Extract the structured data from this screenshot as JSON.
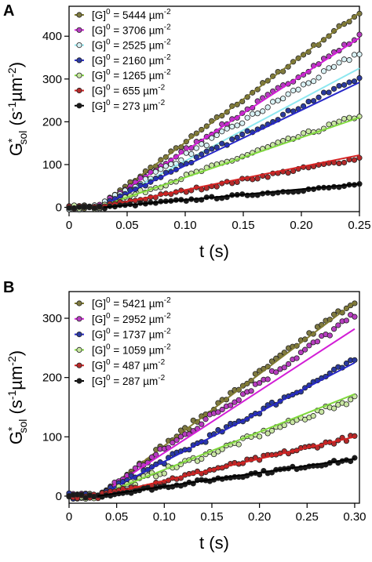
{
  "chart_data": [
    {
      "type": "scatter",
      "panel_label": "A",
      "title": "",
      "xlabel": "t (s)",
      "ylabel": "G*sol (s-1µm-2)",
      "ylabel_parts": {
        "main": "G",
        "sup": "*",
        "sub": "sol",
        "units": " (s",
        "u_sup1": "-1",
        "u_mid": "µm",
        "u_sup2": "-2",
        "u_end": ")"
      },
      "xlim": [
        0,
        0.25
      ],
      "ylim": [
        -10,
        470
      ],
      "x_ticks": [
        0,
        0.05,
        0.1,
        0.15,
        0.2,
        0.25
      ],
      "x_tick_labels": [
        "0",
        "0.05",
        "0.10",
        "0.15",
        "0.20",
        "0.25"
      ],
      "y_ticks": [
        0,
        100,
        200,
        300,
        400
      ],
      "y_tick_labels": [
        "0",
        "100",
        "200",
        "300",
        "400"
      ],
      "grid": false,
      "legend_position": "top-left",
      "series": [
        {
          "name": "[G]0 = 5444 µm-2",
          "legend_parts": {
            "pre": "[G]",
            "sup": "0",
            "mid": " = 5444 µm",
            "sup2": "-2"
          },
          "marker_color": "#7f7a42",
          "line_color": "#807a30",
          "fit_start": 0.025,
          "fit_end_value": 455,
          "final_value": 455,
          "noise": 5
        },
        {
          "name": "[G]0 = 3706 µm-2",
          "legend_parts": {
            "pre": "[G]",
            "sup": "0",
            "mid": " = 3706 µm",
            "sup2": "-2"
          },
          "marker_color": "#b63dbf",
          "line_color": "#d21ed6",
          "fit_start": 0.025,
          "fit_end_value": 396,
          "final_value": 400,
          "noise": 5
        },
        {
          "name": "[G]0 = 2525 µm-2",
          "legend_parts": {
            "pre": "[G]",
            "sup": "0",
            "mid": " = 2525 µm",
            "sup2": "-2"
          },
          "marker_color": "#d9f1f4",
          "line_color": "#8ee8f0",
          "fit_start": 0.025,
          "fit_end_value": 325,
          "final_value": 362,
          "noise": 6
        },
        {
          "name": "[G]0 = 2160 µm-2",
          "legend_parts": {
            "pre": "[G]",
            "sup": "0",
            "mid": " = 2160 µm",
            "sup2": "-2"
          },
          "marker_color": "#2b3aa0",
          "line_color": "#2626c8",
          "fit_start": 0.025,
          "fit_end_value": 292,
          "final_value": 305,
          "noise": 5
        },
        {
          "name": "[G]0 = 1265 µm-2",
          "legend_parts": {
            "pre": "[G]",
            "sup": "0",
            "mid": " = 1265 µm",
            "sup2": "-2"
          },
          "marker_color": "#c9e6a3",
          "line_color": "#7fd83c",
          "fit_start": 0.025,
          "fit_end_value": 210,
          "final_value": 215,
          "noise": 5
        },
        {
          "name": "[G]0 = 655 µm-2",
          "legend_parts": {
            "pre": "[G]",
            "sup": "0",
            "mid": " = 655 µm",
            "sup2": "-2"
          },
          "marker_color": "#b52a2a",
          "line_color": "#d42222",
          "fit_start": 0.025,
          "fit_end_value": 122,
          "final_value": 115,
          "noise": 4
        },
        {
          "name": "[G]0 = 273 µm-2",
          "legend_parts": {
            "pre": "[G]",
            "sup": "0",
            "mid": " = 273 µm",
            "sup2": "-2"
          },
          "marker_color": "#1a1a1a",
          "line_color": "#000000",
          "fit_start": 0.03,
          "fit_end_value": 55,
          "final_value": 52,
          "noise": 3
        }
      ]
    },
    {
      "type": "scatter",
      "panel_label": "B",
      "title": "",
      "xlabel": "t (s)",
      "ylabel": "G*sol (s-1µm-2)",
      "ylabel_parts": {
        "main": "G",
        "sup": "*",
        "sub": "sol",
        "units": " (s",
        "u_sup1": "-1",
        "u_mid": "µm",
        "u_sup2": "-2",
        "u_end": ")"
      },
      "xlim": [
        0,
        0.305
      ],
      "ylim": [
        -12,
        345
      ],
      "x_ticks": [
        0,
        0.05,
        0.1,
        0.15,
        0.2,
        0.25,
        0.3
      ],
      "x_tick_labels": [
        "0",
        "0.05",
        "0.10",
        "0.15",
        "0.20",
        "0.25",
        "0.30"
      ],
      "y_ticks": [
        0,
        100,
        200,
        300
      ],
      "y_tick_labels": [
        "0",
        "100",
        "200",
        "300"
      ],
      "grid": false,
      "legend_position": "top-left",
      "series": [
        {
          "name": "[G]0 = 5421 µm-2",
          "legend_parts": {
            "pre": "[G]",
            "sup": "0",
            "mid": " = 5421 µm",
            "sup2": "-2"
          },
          "marker_color": "#7f7a42",
          "line_color": "#807a30",
          "fit_start": 0.03,
          "fit_end_value": 327,
          "final_value": 330,
          "noise": 5
        },
        {
          "name": "[G]0 = 2952 µm-2",
          "legend_parts": {
            "pre": "[G]",
            "sup": "0",
            "mid": " = 2952 µm",
            "sup2": "-2"
          },
          "marker_color": "#b63dbf",
          "line_color": "#d21ed6",
          "fit_start": 0.03,
          "fit_end_value": 282,
          "final_value": 305,
          "noise": 6
        },
        {
          "name": "[G]0 = 1737 µm-2",
          "legend_parts": {
            "pre": "[G]",
            "sup": "0",
            "mid": " = 1737 µm",
            "sup2": "-2"
          },
          "marker_color": "#2b3aa0",
          "line_color": "#2626c8",
          "fit_start": 0.03,
          "fit_end_value": 225,
          "final_value": 228,
          "noise": 5
        },
        {
          "name": "[G]0 = 1059 µm-2",
          "legend_parts": {
            "pre": "[G]",
            "sup": "0",
            "mid": " = 1059 µm",
            "sup2": "-2"
          },
          "marker_color": "#c9e6a3",
          "line_color": "#7fd83c",
          "fit_start": 0.03,
          "fit_end_value": 172,
          "final_value": 165,
          "noise": 5
        },
        {
          "name": "[G]0 = 487 µm-2",
          "legend_parts": {
            "pre": "[G]",
            "sup": "0",
            "mid": " = 487 µm",
            "sup2": "-2"
          },
          "marker_color": "#b52a2a",
          "line_color": "#d42222",
          "fit_start": 0.03,
          "fit_end_value": 100,
          "final_value": 100,
          "noise": 4
        },
        {
          "name": "[G]0 = 287 µm-2",
          "legend_parts": {
            "pre": "[G]",
            "sup": "0",
            "mid": " = 287 µm",
            "sup2": "-2"
          },
          "marker_color": "#1a1a1a",
          "line_color": "#000000",
          "fit_start": 0.03,
          "fit_end_value": 63,
          "final_value": 62,
          "noise": 3
        }
      ]
    }
  ]
}
